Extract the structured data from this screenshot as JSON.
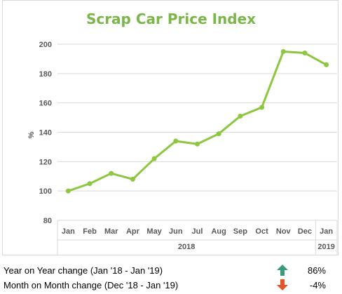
{
  "colors": {
    "line": "#8dc63f",
    "title": "#7ab648",
    "grid": "#d9d9d9",
    "tick_text": "#595959",
    "arrow_up": "#3b9a7c",
    "arrow_down": "#e2552b"
  },
  "chart_data": {
    "type": "line",
    "title": "Scrap Car Price Index",
    "ylabel": "%",
    "ylim": [
      80,
      200
    ],
    "yticks": [
      80,
      100,
      120,
      140,
      160,
      180,
      200
    ],
    "grid": true,
    "legend": "none",
    "categories": [
      "Jan",
      "Feb",
      "Mar",
      "Apr",
      "May",
      "Jun",
      "Jul",
      "Aug",
      "Sep",
      "Oct",
      "Nov",
      "Dec",
      "Jan"
    ],
    "groups": [
      {
        "label": "2018",
        "span": 12
      },
      {
        "label": "2019",
        "span": 1
      }
    ],
    "series": [
      {
        "values": [
          100,
          105,
          112,
          108,
          122,
          134,
          132,
          139,
          151,
          157,
          195,
          194,
          186
        ]
      }
    ]
  },
  "summary": [
    {
      "label": "Year on Year change (Jan '18 - Jan '19)",
      "direction": "up",
      "value": "86%"
    },
    {
      "label": "Month on Month change (Dec '18 - Jan '19)",
      "direction": "down",
      "value": "-4%"
    }
  ]
}
